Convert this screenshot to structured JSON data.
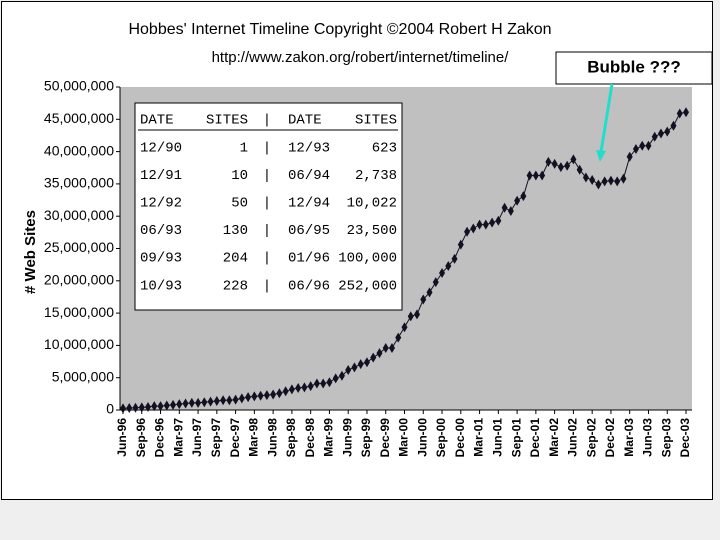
{
  "chart_data": {
    "type": "scatter",
    "title": "Hobbes' Internet Timeline Copyright ©2004 Robert H Zakon",
    "subtitle": "http://www.zakon.org/robert/internet/timeline/",
    "y_label": "# Web Sites",
    "annotation": "Bubble ???",
    "color": "#111122",
    "categories": [
      "Jun-96",
      null,
      null,
      "Sep-96",
      null,
      null,
      "Dec-96",
      null,
      null,
      "Mar-97",
      null,
      null,
      "Jun-97",
      null,
      null,
      "Sep-97",
      null,
      null,
      "Dec-97",
      null,
      null,
      "Mar-98",
      null,
      null,
      "Jun-98",
      null,
      null,
      "Sep-98",
      null,
      null,
      "Dec-98",
      null,
      null,
      "Mar-99",
      null,
      null,
      "Jun-99",
      null,
      null,
      "Sep-99",
      null,
      null,
      "Dec-99",
      null,
      null,
      "Mar-00",
      null,
      null,
      "Jun-00",
      null,
      null,
      "Sep-00",
      null,
      null,
      "Dec-00",
      null,
      null,
      "Mar-01",
      null,
      null,
      "Jun-01",
      null,
      null,
      "Sep-01",
      null,
      null,
      "Dec-01",
      null,
      null,
      "Mar-02",
      null,
      null,
      "Jun-02",
      null,
      null,
      "Sep-02",
      null,
      null,
      "Dec-02",
      null,
      null,
      "Mar-03",
      null,
      null,
      "Jun-03",
      null,
      null,
      "Sep-03",
      null,
      null,
      "Dec-03"
    ],
    "values": [
      250000,
      300000,
      340000,
      400000,
      460000,
      600000,
      600000,
      700000,
      800000,
      900000,
      1000000,
      1100000,
      1100000,
      1200000,
      1300000,
      1400000,
      1500000,
      1500000,
      1600000,
      1800000,
      2000000,
      2100000,
      2200000,
      2300000,
      2400000,
      2600000,
      2900000,
      3200000,
      3400000,
      3500000,
      3700000,
      4100000,
      4100000,
      4300000,
      4900000,
      5300000,
      6200000,
      6600000,
      7100000,
      7400000,
      8100000,
      8800000,
      9600000,
      9600000,
      11200000,
      12800000,
      14500000,
      14800000,
      17100000,
      18200000,
      19800000,
      21200000,
      22300000,
      23400000,
      25600000,
      27600000,
      28100000,
      28700000,
      28700000,
      29000000,
      29300000,
      31300000,
      30800000,
      32400000,
      33100000,
      36300000,
      36300000,
      36300000,
      38400000,
      38100000,
      37600000,
      37800000,
      38800000,
      37200000,
      36000000,
      35600000,
      34900000,
      35400000,
      35500000,
      35400000,
      35800000,
      39200000,
      40400000,
      40900000,
      40900000,
      42300000,
      42800000,
      43100000,
      44000000,
      45900000,
      46100000
    ],
    "ylim": [
      0,
      50000000
    ],
    "yticks": [
      0,
      {
        "value": 5000000,
        "label": "5,000,000"
      },
      {
        "value": 10000000,
        "label": "10,000,000"
      },
      {
        "value": 15000000,
        "label": "15,000,000"
      },
      {
        "value": 20000000,
        "label": "20,000,000"
      },
      {
        "value": 25000000,
        "label": "25,000,000"
      },
      {
        "value": 30000000,
        "label": "30,000,000"
      },
      {
        "value": 35000000,
        "label": "35,000,000"
      },
      {
        "value": 40000000,
        "label": "40,000,000"
      },
      {
        "value": 45000000,
        "label": "45,000,000"
      },
      {
        "value": 50000000,
        "label": "50,000,000"
      }
    ],
    "table": {
      "columns": [
        "DATE",
        "SITES",
        "DATE",
        "SITES"
      ],
      "rows": [
        [
          "12/90",
          "1",
          "12/93",
          "623"
        ],
        [
          "12/91",
          "10",
          "06/94",
          "2,738"
        ],
        [
          "12/92",
          "50",
          "12/94",
          "10,022"
        ],
        [
          "06/93",
          "130",
          "06/95",
          "23,500"
        ],
        [
          "09/93",
          "204",
          "01/96",
          "100,000"
        ],
        [
          "10/93",
          "228",
          "06/96",
          "252,000"
        ]
      ]
    }
  }
}
